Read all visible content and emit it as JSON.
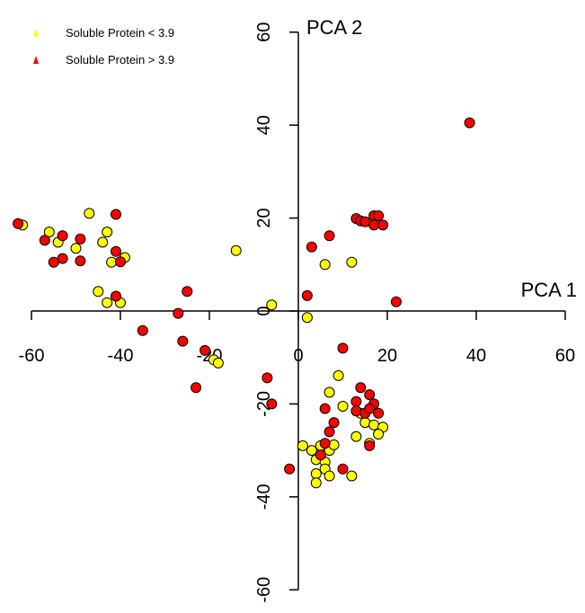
{
  "chart_data": {
    "type": "scatter",
    "title": "",
    "xlabel": "PCA 1",
    "ylabel": "PCA 2",
    "xlim": [
      -60,
      60
    ],
    "ylim": [
      -60,
      60
    ],
    "x_ticks": [
      "-60",
      "-40",
      "-20",
      "0",
      "20",
      "40",
      "60"
    ],
    "y_ticks": [
      "-60",
      "-40",
      "-20",
      "0",
      "20",
      "40",
      "60"
    ],
    "x_tick_values": [
      -60,
      -40,
      -20,
      0,
      20,
      40,
      60
    ],
    "y_tick_values": [
      -60,
      -40,
      -20,
      0,
      20,
      40,
      60
    ],
    "grid": false,
    "legend_position": "top-left",
    "series": [
      {
        "name": "Soluble Protein < 3.9",
        "color": "#ffff00",
        "points": [
          [
            -62,
            18.5
          ],
          [
            -56,
            17
          ],
          [
            -54,
            14.8
          ],
          [
            -50,
            13.5
          ],
          [
            -47,
            21
          ],
          [
            -43,
            17
          ],
          [
            -44,
            14.8
          ],
          [
            -42,
            10.5
          ],
          [
            -39,
            11.5
          ],
          [
            -45,
            4.2
          ],
          [
            -43,
            1.8
          ],
          [
            -40,
            1.8
          ],
          [
            -6,
            1.3
          ],
          [
            -14,
            13
          ],
          [
            -19,
            -10.5
          ],
          [
            -18,
            -11.2
          ],
          [
            2,
            -1.4
          ],
          [
            6,
            10
          ],
          [
            12,
            10.5
          ],
          [
            9,
            -13.9
          ],
          [
            7,
            -17.5
          ],
          [
            10,
            -20.5
          ],
          [
            14,
            -22
          ],
          [
            15,
            -24
          ],
          [
            17,
            -24.5
          ],
          [
            19,
            -25
          ],
          [
            13,
            -27
          ],
          [
            16,
            -28.5
          ],
          [
            1,
            -29
          ],
          [
            3,
            -30
          ],
          [
            5,
            -29
          ],
          [
            7,
            -30
          ],
          [
            8,
            -28.8
          ],
          [
            4,
            -32
          ],
          [
            6,
            -32.5
          ],
          [
            4,
            -35
          ],
          [
            6,
            -34
          ],
          [
            7,
            -35.5
          ],
          [
            4,
            -37
          ],
          [
            12,
            -35.5
          ],
          [
            18,
            -26.5
          ]
        ]
      },
      {
        "name": "Soluble Protein > 3.9",
        "color": "#ff0000",
        "points": [
          [
            -63,
            18.8
          ],
          [
            -57,
            15.2
          ],
          [
            -53,
            16.2
          ],
          [
            -55,
            10.5
          ],
          [
            -53,
            11.3
          ],
          [
            -49,
            15.5
          ],
          [
            -49,
            10.8
          ],
          [
            -41,
            20.8
          ],
          [
            -41,
            12.8
          ],
          [
            -40,
            10.6
          ],
          [
            -41,
            3.2
          ],
          [
            -35,
            -4.2
          ],
          [
            -25,
            4.2
          ],
          [
            -27,
            -0.5
          ],
          [
            -26,
            -6.5
          ],
          [
            -21,
            -8.5
          ],
          [
            -23,
            -16.5
          ],
          [
            -7,
            -14.4
          ],
          [
            -6,
            -20
          ],
          [
            2,
            3.3
          ],
          [
            3,
            13.8
          ],
          [
            7,
            16.2
          ],
          [
            13,
            19.9
          ],
          [
            14,
            19.4
          ],
          [
            15,
            19.2
          ],
          [
            17,
            20.5
          ],
          [
            18,
            20.5
          ],
          [
            17,
            18.5
          ],
          [
            19,
            18.5
          ],
          [
            22,
            2
          ],
          [
            38.5,
            40.5
          ],
          [
            10,
            -8
          ],
          [
            14,
            -16.5
          ],
          [
            16,
            -18
          ],
          [
            13,
            -19.5
          ],
          [
            17,
            -20
          ],
          [
            13,
            -21.5
          ],
          [
            15,
            -22
          ],
          [
            16,
            -21
          ],
          [
            18,
            -22
          ],
          [
            6,
            -21
          ],
          [
            8,
            -24
          ],
          [
            7,
            -26
          ],
          [
            6,
            -28.5
          ],
          [
            16,
            -29
          ],
          [
            5,
            -31
          ],
          [
            10,
            -34
          ],
          [
            -2,
            -34
          ]
        ]
      }
    ]
  }
}
